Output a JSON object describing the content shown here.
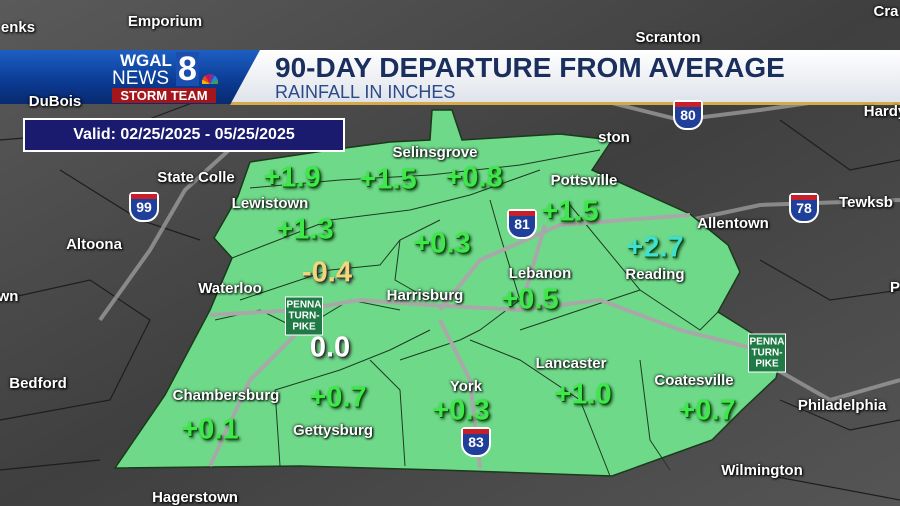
{
  "header": {
    "logo": {
      "line1": "WGAL",
      "line2": "NEWS",
      "number": "8",
      "storm_team": "STORM TEAM"
    },
    "title": "90-DAY DEPARTURE FROM AVERAGE",
    "subtitle": "RAINFALL IN INCHES"
  },
  "valid_range": "Valid: 02/25/2025 - 05/25/2025",
  "colors": {
    "region_fill": "#6fd98a",
    "positive_value": "#3ee84a",
    "large_positive_value": "#3fe0d0",
    "negative_value": "#f2d77a",
    "zero_value": "#ffffff",
    "banner_blue": "#0b3a91"
  },
  "cities": [
    {
      "name": "Emporium"
    },
    {
      "name": "Scranton"
    },
    {
      "name": "enks"
    },
    {
      "name": "Cra"
    },
    {
      "name": "State Colle"
    },
    {
      "name": "Lewistown"
    },
    {
      "name": "Selinsgrove"
    },
    {
      "name": "Pottsville"
    },
    {
      "name": "Allentown"
    },
    {
      "name": "Tewksb"
    },
    {
      "name": "Altoona"
    },
    {
      "name": "Waterloo"
    },
    {
      "name": "Harrisburg"
    },
    {
      "name": "Lebanon"
    },
    {
      "name": "Reading"
    },
    {
      "name": "Bedford"
    },
    {
      "name": "Chambersburg"
    },
    {
      "name": "Gettysburg"
    },
    {
      "name": "York"
    },
    {
      "name": "Lancaster"
    },
    {
      "name": "Coatesville"
    },
    {
      "name": "Philadelphia"
    },
    {
      "name": "Wilmington"
    },
    {
      "name": "Hagerstown"
    },
    {
      "name": "Hardy"
    },
    {
      "name": "wn"
    },
    {
      "name": "P"
    },
    {
      "name": "ston"
    },
    {
      "name": "DuBois"
    }
  ],
  "values": [
    {
      "value": "+1.9",
      "tone": "positive"
    },
    {
      "value": "+1.5",
      "tone": "positive"
    },
    {
      "value": "+0.8",
      "tone": "positive"
    },
    {
      "value": "+1.3",
      "tone": "positive"
    },
    {
      "value": "+1.5",
      "tone": "positive"
    },
    {
      "value": "+0.3",
      "tone": "positive"
    },
    {
      "value": "+2.7",
      "tone": "large"
    },
    {
      "value": "-0.4",
      "tone": "negative"
    },
    {
      "value": "+0.5",
      "tone": "positive"
    },
    {
      "value": "0.0",
      "tone": "zero"
    },
    {
      "value": "+0.7",
      "tone": "positive"
    },
    {
      "value": "+0.3",
      "tone": "positive"
    },
    {
      "value": "+1.0",
      "tone": "positive"
    },
    {
      "value": "+0.1",
      "tone": "positive"
    },
    {
      "value": "+0.7",
      "tone": "positive"
    }
  ],
  "highways": [
    {
      "label": "99",
      "icon": "interstate-shield-icon"
    },
    {
      "label": "80",
      "icon": "interstate-shield-icon"
    },
    {
      "label": "81",
      "icon": "interstate-shield-icon"
    },
    {
      "label": "78",
      "icon": "interstate-shield-icon"
    },
    {
      "label": "83",
      "icon": "interstate-shield-icon"
    },
    {
      "label": "PENNA TURN-PIKE",
      "icon": "turnpike-sign-icon"
    },
    {
      "label": "PENNA TURN-PIKE",
      "icon": "turnpike-sign-icon"
    }
  ]
}
